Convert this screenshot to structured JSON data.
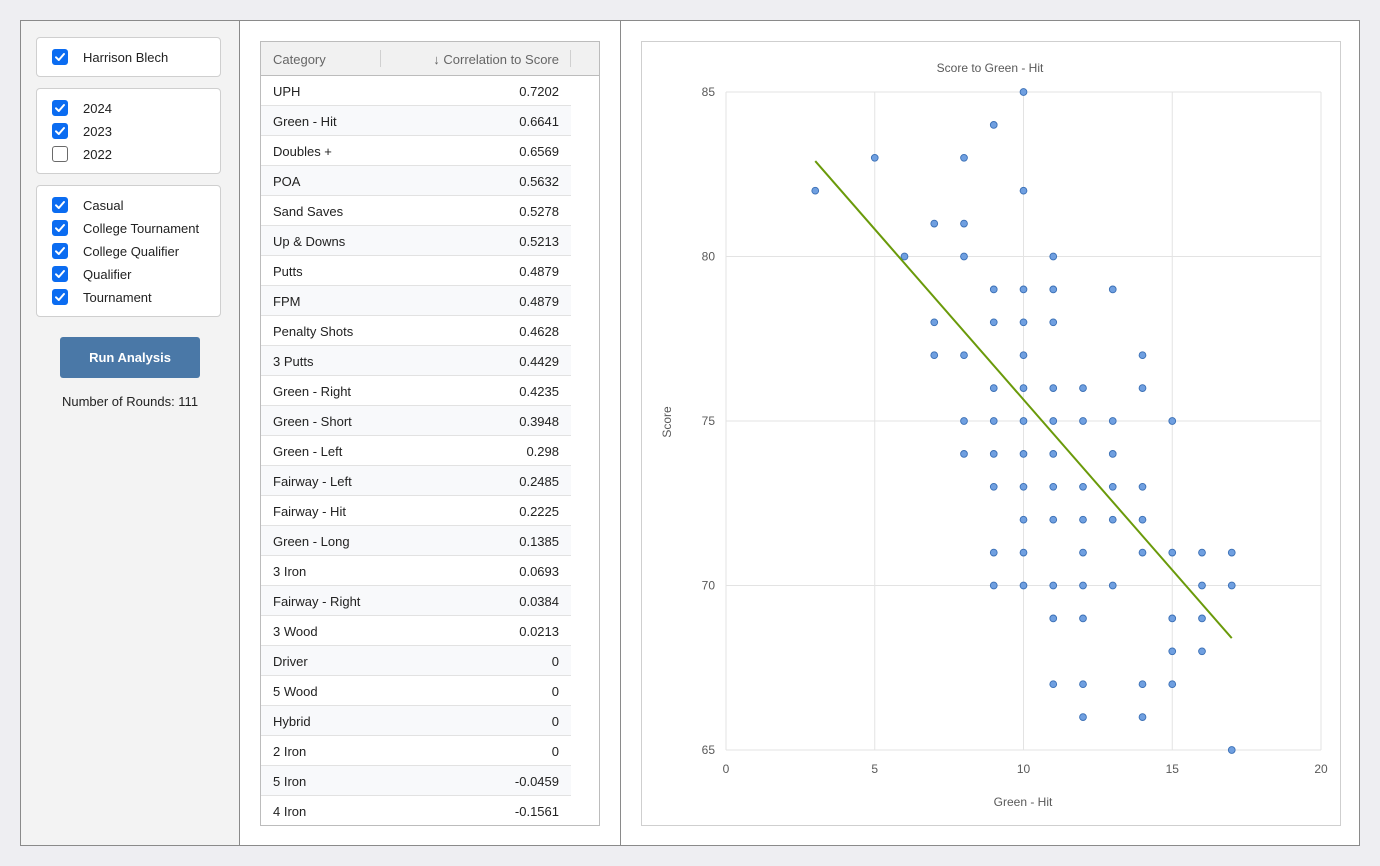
{
  "filters": {
    "players": [
      {
        "label": "Harrison Blech",
        "checked": true
      }
    ],
    "years": [
      {
        "label": "2024",
        "checked": true
      },
      {
        "label": "2023",
        "checked": true
      },
      {
        "label": "2022",
        "checked": false
      }
    ],
    "round_types": [
      {
        "label": "Casual",
        "checked": true
      },
      {
        "label": "College Tournament",
        "checked": true
      },
      {
        "label": "College Qualifier",
        "checked": true
      },
      {
        "label": "Qualifier",
        "checked": true
      },
      {
        "label": "Tournament",
        "checked": true
      }
    ]
  },
  "run_button_label": "Run Analysis",
  "rounds_text": "Number of Rounds: 111",
  "table": {
    "col_category": "Category",
    "col_correlation": "↓ Correlation to Score",
    "rows": [
      {
        "category": "UPH",
        "value": "0.7202"
      },
      {
        "category": "Green - Hit",
        "value": "0.6641"
      },
      {
        "category": "Doubles +",
        "value": "0.6569"
      },
      {
        "category": "POA",
        "value": "0.5632"
      },
      {
        "category": "Sand Saves",
        "value": "0.5278"
      },
      {
        "category": "Up & Downs",
        "value": "0.5213"
      },
      {
        "category": "Putts",
        "value": "0.4879"
      },
      {
        "category": "FPM",
        "value": "0.4879"
      },
      {
        "category": "Penalty Shots",
        "value": "0.4628"
      },
      {
        "category": "3 Putts",
        "value": "0.4429"
      },
      {
        "category": "Green - Right",
        "value": "0.4235"
      },
      {
        "category": "Green - Short",
        "value": "0.3948"
      },
      {
        "category": "Green - Left",
        "value": "0.298"
      },
      {
        "category": "Fairway - Left",
        "value": "0.2485"
      },
      {
        "category": "Fairway - Hit",
        "value": "0.2225"
      },
      {
        "category": "Green - Long",
        "value": "0.1385"
      },
      {
        "category": "3 Iron",
        "value": "0.0693"
      },
      {
        "category": "Fairway - Right",
        "value": "0.0384"
      },
      {
        "category": "3 Wood",
        "value": "0.0213"
      },
      {
        "category": "Driver",
        "value": "0"
      },
      {
        "category": "5 Wood",
        "value": "0"
      },
      {
        "category": "Hybrid",
        "value": "0"
      },
      {
        "category": "2 Iron",
        "value": "0"
      },
      {
        "category": "5 Iron",
        "value": "-0.0459"
      },
      {
        "category": "4 Iron",
        "value": "-0.1561"
      }
    ]
  },
  "colors": {
    "checkbox": "#0b6cf1",
    "button": "#4a78a7",
    "point_fill": "#6f9fe0",
    "point_stroke": "#3a6fb5",
    "trendline": "#6a9a0a",
    "grid": "#e3e3e3"
  },
  "chart_data": {
    "type": "scatter",
    "title": "Score to Green - Hit",
    "xlabel": "Green - Hit",
    "ylabel": "Score",
    "xlim": [
      0,
      20
    ],
    "ylim": [
      65,
      85
    ],
    "xticks": [
      0,
      5,
      10,
      15,
      20
    ],
    "yticks": [
      65,
      70,
      75,
      80,
      85
    ],
    "grid": true,
    "points": [
      [
        3,
        82
      ],
      [
        5,
        83
      ],
      [
        6,
        80
      ],
      [
        7,
        81
      ],
      [
        7,
        78
      ],
      [
        7,
        77
      ],
      [
        8,
        83
      ],
      [
        8,
        81
      ],
      [
        8,
        80
      ],
      [
        8,
        77
      ],
      [
        8,
        75
      ],
      [
        8,
        74
      ],
      [
        9,
        84
      ],
      [
        9,
        79
      ],
      [
        9,
        78
      ],
      [
        9,
        76
      ],
      [
        9,
        75
      ],
      [
        9,
        74
      ],
      [
        9,
        73
      ],
      [
        9,
        71
      ],
      [
        9,
        70
      ],
      [
        10,
        85
      ],
      [
        10,
        82
      ],
      [
        10,
        79
      ],
      [
        10,
        78
      ],
      [
        10,
        77
      ],
      [
        10,
        76
      ],
      [
        10,
        75
      ],
      [
        10,
        74
      ],
      [
        10,
        73
      ],
      [
        10,
        72
      ],
      [
        10,
        71
      ],
      [
        10,
        70
      ],
      [
        11,
        80
      ],
      [
        11,
        79
      ],
      [
        11,
        78
      ],
      [
        11,
        76
      ],
      [
        11,
        75
      ],
      [
        11,
        74
      ],
      [
        11,
        73
      ],
      [
        11,
        72
      ],
      [
        11,
        70
      ],
      [
        11,
        69
      ],
      [
        11,
        67
      ],
      [
        12,
        76
      ],
      [
        12,
        75
      ],
      [
        12,
        73
      ],
      [
        12,
        72
      ],
      [
        12,
        71
      ],
      [
        12,
        70
      ],
      [
        12,
        69
      ],
      [
        12,
        67
      ],
      [
        12,
        66
      ],
      [
        13,
        79
      ],
      [
        13,
        75
      ],
      [
        13,
        74
      ],
      [
        13,
        73
      ],
      [
        13,
        72
      ],
      [
        13,
        70
      ],
      [
        14,
        77
      ],
      [
        14,
        76
      ],
      [
        14,
        73
      ],
      [
        14,
        72
      ],
      [
        14,
        71
      ],
      [
        14,
        67
      ],
      [
        14,
        66
      ],
      [
        15,
        75
      ],
      [
        15,
        71
      ],
      [
        15,
        69
      ],
      [
        15,
        68
      ],
      [
        15,
        67
      ],
      [
        16,
        71
      ],
      [
        16,
        70
      ],
      [
        16,
        69
      ],
      [
        16,
        68
      ],
      [
        17,
        71
      ],
      [
        17,
        70
      ],
      [
        17,
        65
      ]
    ],
    "trendline": {
      "from": [
        3,
        82.9
      ],
      "to": [
        17,
        68.4
      ]
    }
  }
}
